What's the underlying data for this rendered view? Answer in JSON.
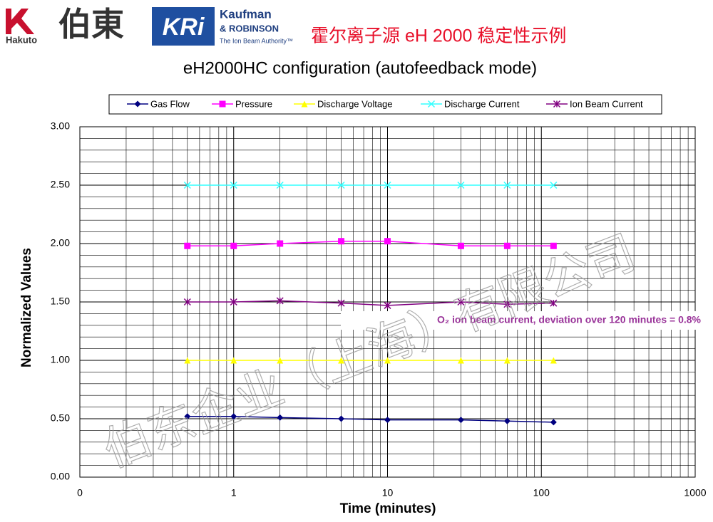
{
  "header": {
    "hakuto": "Hakuto",
    "hakuto_cn": "伯東",
    "kaufman": "Kaufman",
    "robinson": "& ROBINSON",
    "tagline": "The Ion Beam Authority™",
    "kri": "KRi",
    "title_cn": "霍尔离子源 eH 2000 稳定性示例"
  },
  "watermark": "伯东企业（上海）有限公司",
  "chart_data": {
    "type": "line",
    "title": "eH2000HC configuration (autofeedback mode)",
    "x_label": "Time (minutes)",
    "y_label": "Normalized Values",
    "x": [
      0.5,
      1,
      2,
      5,
      10,
      30,
      60,
      120
    ],
    "xscale": "log",
    "xlim": [
      0.1,
      1000
    ],
    "xticks": [
      {
        "value": 0.1,
        "label": "0"
      },
      1,
      10,
      100,
      1000
    ],
    "ylim": [
      0,
      3
    ],
    "yticks": [
      {
        "value": 0,
        "label": "0.00"
      },
      {
        "value": 0.5,
        "label": "0.50"
      },
      {
        "value": 1,
        "label": "1.00"
      },
      {
        "value": 1.5,
        "label": "1.50"
      },
      {
        "value": 2,
        "label": "2.00"
      },
      {
        "value": 2.5,
        "label": "2.50"
      },
      {
        "value": 3,
        "label": "3.00"
      }
    ],
    "grid": true,
    "legend": "top",
    "series": [
      {
        "name": "Gas Flow",
        "color": "#000080",
        "marker": "diamond",
        "values": [
          0.52,
          0.52,
          0.51,
          0.5,
          0.49,
          0.49,
          0.48,
          0.47
        ]
      },
      {
        "name": "Pressure",
        "color": "#ff00ff",
        "marker": "square",
        "values": [
          1.98,
          1.98,
          2.0,
          2.02,
          2.02,
          1.98,
          1.98,
          1.98
        ]
      },
      {
        "name": "Discharge Voltage",
        "color": "#ffff00",
        "marker": "triangle",
        "values": [
          1,
          1,
          1,
          1,
          1,
          1,
          1,
          1
        ]
      },
      {
        "name": "Discharge Current",
        "color": "#33ffff",
        "marker": "x",
        "values": [
          2.5,
          2.5,
          2.5,
          2.5,
          2.5,
          2.5,
          2.5,
          2.5
        ]
      },
      {
        "name": "Ion Beam Current",
        "color": "#800080",
        "marker": "star",
        "values": [
          1.5,
          1.5,
          1.51,
          1.49,
          1.47,
          1.5,
          1.48,
          1.49
        ]
      }
    ],
    "annotation": "O₂ ion beam current, deviation over 120 minutes = 0.8%"
  }
}
